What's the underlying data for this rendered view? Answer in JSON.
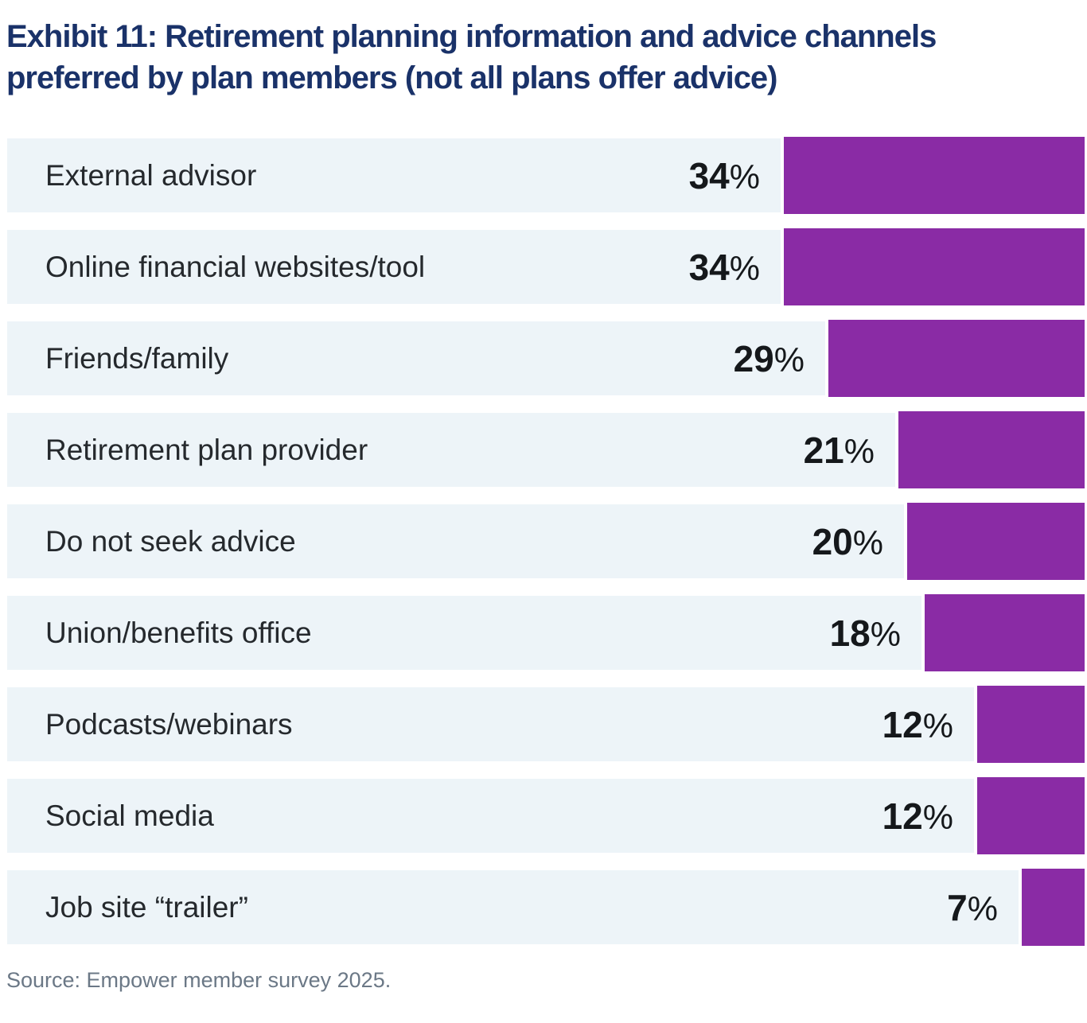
{
  "page": {
    "title_line1": "Exhibit 11: Retirement planning information and advice channels",
    "title_line2": "preferred by plan members (not all plans offer advice)",
    "source_note": "Source: Empower member survey 2025."
  },
  "colors": {
    "bar": "#8A2BA5",
    "row_background": "#EDF4F8",
    "title_text": "#1A3269",
    "label_text": "#25292D",
    "value_text": "#15181B",
    "source_text": "#6B7886"
  },
  "chart_data": {
    "type": "bar",
    "orientation": "horizontal",
    "bars_right_aligned": true,
    "title": "Exhibit 11: Retirement planning information and advice channels preferred by plan members (not all plans offer advice)",
    "unit": "%",
    "categories": [
      "External advisor",
      "Online financial websites/tool",
      "Friends/family",
      "Retirement plan provider",
      "Do not seek advice",
      "Union/benefits office",
      "Podcasts/webinars",
      "Social media",
      "Job site “trailer”"
    ],
    "values": [
      34,
      34,
      29,
      21,
      20,
      18,
      12,
      12,
      7
    ],
    "value_labels": [
      "34%",
      "34%",
      "29%",
      "21%",
      "20%",
      "18%",
      "12%",
      "12%",
      "7%"
    ],
    "xlim": [
      0,
      34
    ],
    "grid": false,
    "legend": false,
    "value_label_position": "left-of-bar",
    "source": "Source: Empower member survey 2025."
  }
}
